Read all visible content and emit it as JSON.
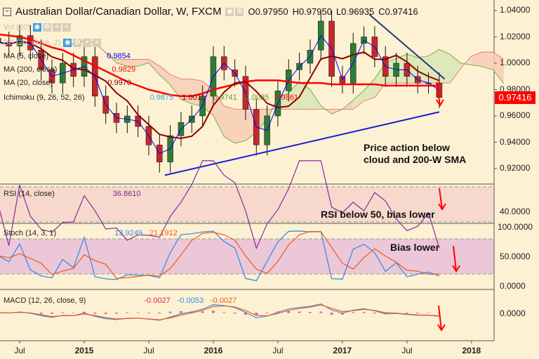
{
  "header": {
    "title": "Australian Dollar/Canadian Dollar, W, FXCM",
    "open": "O0.97950",
    "high": "H0.97950",
    "low": "L0.96935",
    "close": "C0.97416"
  },
  "legends": {
    "vol": "Vol (20)",
    "bb": "BB (20, close, 2)",
    "ma5": {
      "label": "MA (5, close)",
      "value": "0.9854",
      "color": "#0000ff"
    },
    "ma200": {
      "label": "MA (200, close)",
      "value": "0.9829",
      "color": "#ff0000"
    },
    "ma20": {
      "label": "MA (20, close)",
      "value": "0.9970",
      "color": "#8b0000"
    },
    "ichimoku": {
      "label": "Ichimoku (9, 26, 52, 26)",
      "values": [
        "0.9875",
        "1.0011",
        "0.9741",
        "1.0035",
        "0.9861"
      ]
    },
    "rsi": {
      "label": "RSI (14, close)",
      "value": "36.8610"
    },
    "stoch": {
      "label": "Stoch (14, 3, 1)",
      "k": "13.9249",
      "d": "21.1912"
    },
    "macd": {
      "label": "MACD (12, 26, close, 9)",
      "hist": "-0.0027",
      "macd": "-0.0053",
      "signal": "-0.0027"
    }
  },
  "annotations": {
    "price": "Price action below\ncloud and 200-W SMA",
    "rsi": "RSI below 50, bias lower",
    "stoch": "Bias lower"
  },
  "price_axis": [
    "1.04000",
    "1.02000",
    "1.00000",
    "0.98000",
    "0.96000",
    "0.94000",
    "0.92000"
  ],
  "last_price": "0.97416",
  "rsi_axis": "40.0000",
  "stoch_axis": [
    "100.0000",
    "50.0000",
    "0.0000"
  ],
  "macd_axis": "0.0000",
  "x_axis": [
    {
      "label": "Jul",
      "m": 0
    },
    {
      "label": "2015",
      "m": 6,
      "bold": true
    },
    {
      "label": "Jul",
      "m": 12
    },
    {
      "label": "2016",
      "m": 18,
      "bold": true
    },
    {
      "label": "Jul",
      "m": 24
    },
    {
      "label": "2017",
      "m": 30,
      "bold": true
    },
    {
      "label": "Jul",
      "m": 36
    },
    {
      "label": "2018",
      "m": 42,
      "bold": true
    }
  ],
  "chart_data": {
    "type": "candlestick",
    "symbol": "AUD/CAD",
    "interval": "monthly approximation of weekly chart",
    "start_month": -2,
    "closes": [
      1.016,
      1.013,
      1.021,
      1.01,
      0.995,
      0.985,
      1.0,
      0.99,
      1.005,
      0.975,
      0.962,
      0.955,
      0.96,
      0.952,
      0.938,
      0.925,
      0.945,
      0.955,
      0.96,
      0.975,
      1.005,
      0.995,
      0.99,
      0.965,
      0.938,
      0.96,
      0.979,
      0.995,
      1.0,
      1.01,
      1.032,
      0.99,
      0.985,
      1.015,
      1.02,
      1.005,
      0.99,
      1.0,
      0.99,
      0.985,
      0.985,
      0.974
    ],
    "ma200": [
      1.022,
      1.021,
      1.02,
      1.018,
      1.015,
      1.012,
      1.01,
      1.006,
      1.002,
      0.998,
      0.994,
      0.99,
      0.986,
      0.983,
      0.98,
      0.978,
      0.976,
      0.975,
      0.975,
      0.977,
      0.98,
      0.982,
      0.984,
      0.986,
      0.987,
      0.987,
      0.987,
      0.986,
      0.985,
      0.985,
      0.985,
      0.984,
      0.984,
      0.984,
      0.984,
      0.984,
      0.983,
      0.983,
      0.983,
      0.983,
      0.983,
      0.983
    ],
    "support_line": [
      [
        13.5,
        0.915
      ],
      [
        39,
        0.963
      ]
    ],
    "resistance_line": [
      [
        32.5,
        1.037
      ],
      [
        39.5,
        0.988
      ]
    ],
    "ylim": [
      0.905,
      1.045
    ]
  }
}
